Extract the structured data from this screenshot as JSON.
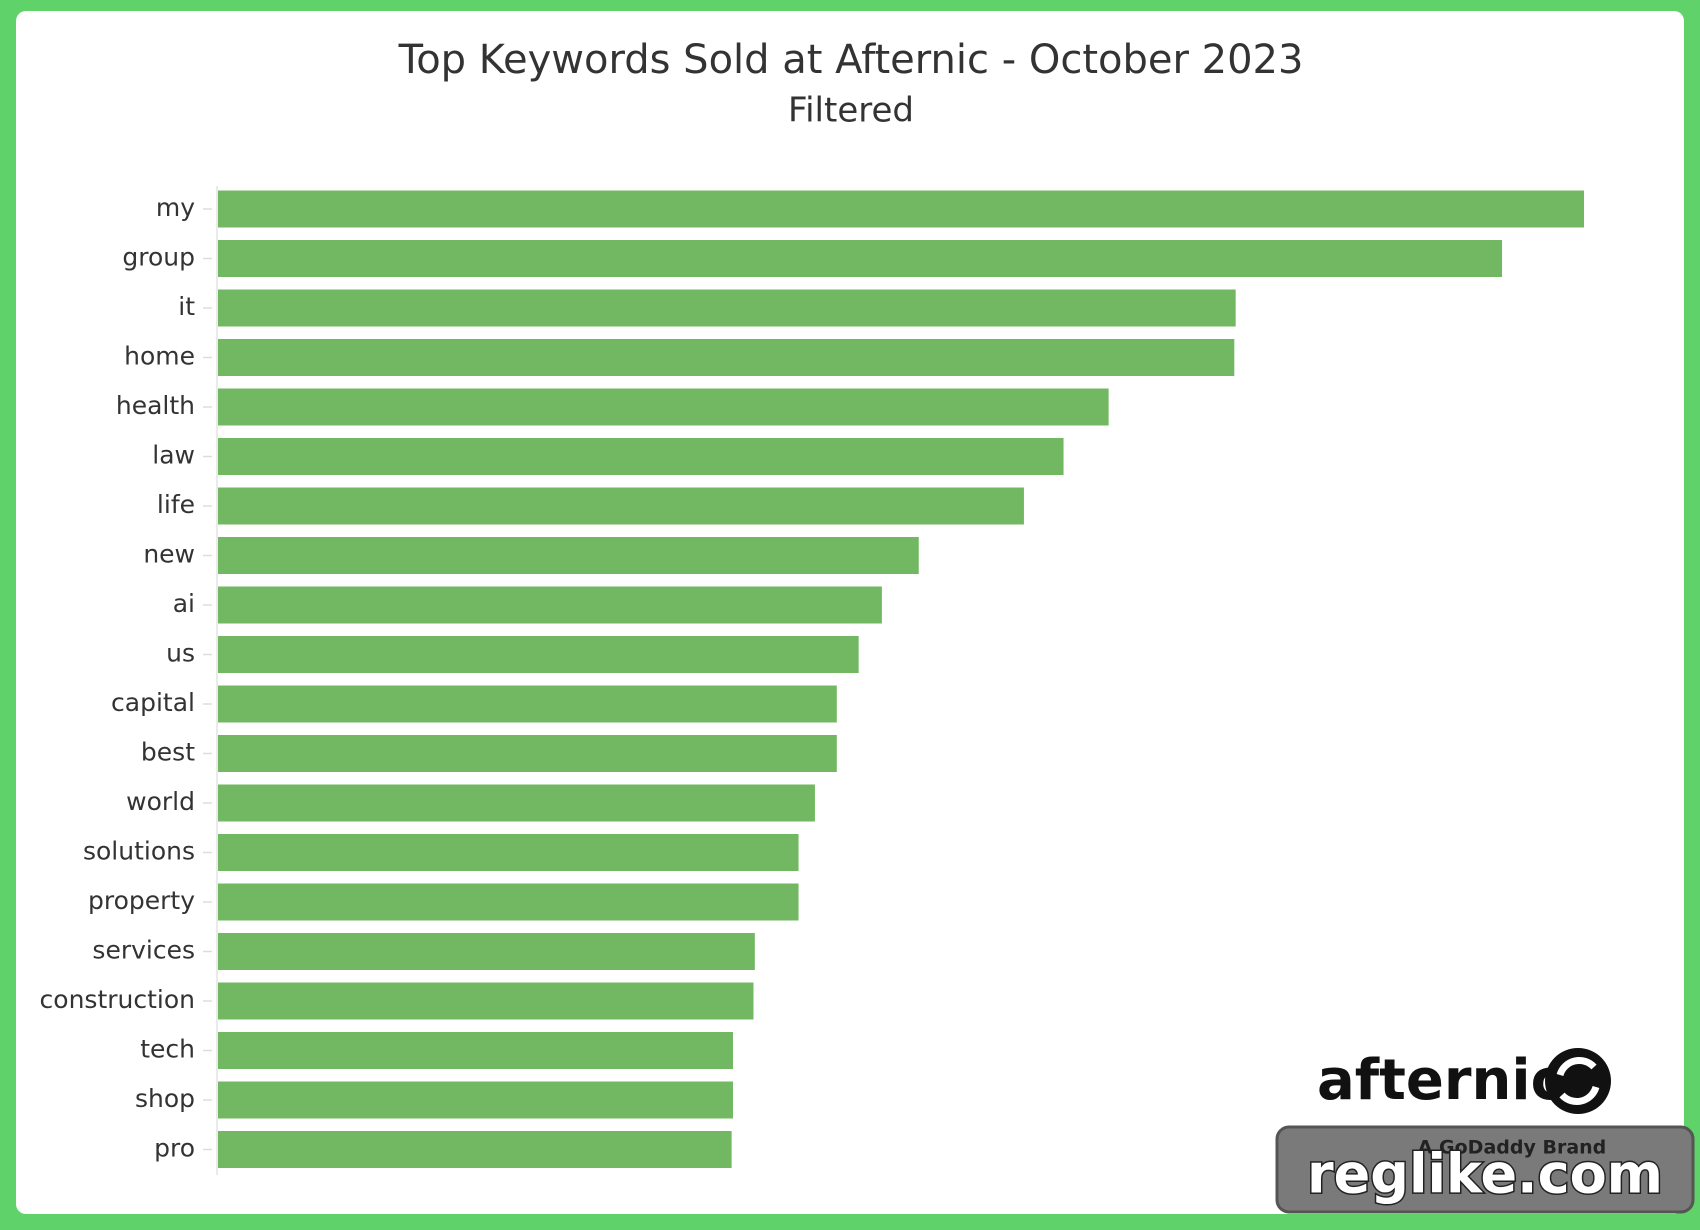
{
  "chart_data": {
    "type": "bar",
    "orientation": "horizontal",
    "title": "Top Keywords Sold at Afternic - October 2023",
    "subtitle": "Filtered",
    "categories": [
      "my",
      "group",
      "it",
      "home",
      "health",
      "law",
      "life",
      "new",
      "ai",
      "us",
      "capital",
      "best",
      "world",
      "solutions",
      "property",
      "services",
      "construction",
      "tech",
      "shop",
      "pro"
    ],
    "values": [
      100,
      94,
      74.5,
      74.4,
      65.2,
      61.9,
      59,
      51.3,
      48.6,
      46.9,
      45.3,
      45.3,
      43.7,
      42.5,
      42.5,
      39.3,
      39.2,
      37.7,
      37.7,
      37.6
    ],
    "color": "#72b862"
  },
  "branding": {
    "logo": "afternic",
    "tagline": "A GoDaddy Brand",
    "watermark": "reglike.com"
  }
}
